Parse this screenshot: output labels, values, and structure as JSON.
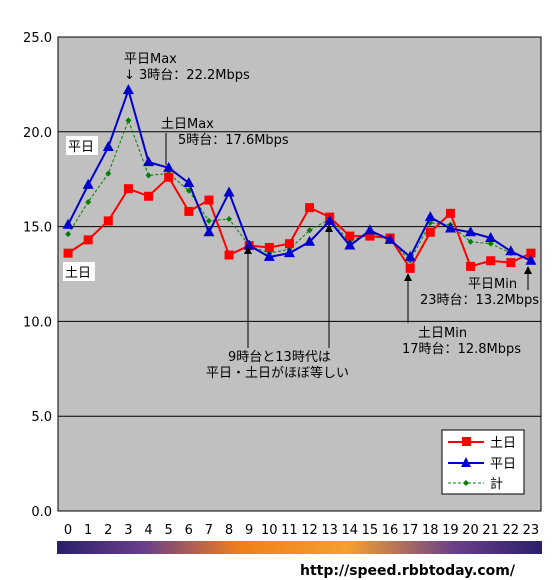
{
  "chart_data": {
    "type": "line",
    "categories": [
      "0",
      "1",
      "2",
      "3",
      "4",
      "5",
      "6",
      "7",
      "8",
      "9",
      "10",
      "11",
      "12",
      "13",
      "14",
      "15",
      "16",
      "17",
      "18",
      "19",
      "20",
      "21",
      "22",
      "23"
    ],
    "x_tick_labels": [
      "0",
      "1",
      "2",
      "3",
      "4",
      "5",
      "6",
      "7",
      "8",
      "9",
      "10",
      "11",
      "12",
      "13",
      "14",
      "15",
      "16",
      "17",
      "18",
      "19",
      "20",
      "21",
      "22",
      "23"
    ],
    "y_tick_labels": [
      "0.0",
      "5.0",
      "10.0",
      "15.0",
      "20.0",
      "25.0"
    ],
    "ylim": [
      0,
      25
    ],
    "grid": "horizontal",
    "legend_position": "bottom-right",
    "series": [
      {
        "name": "土日",
        "color": "#ff0000",
        "marker": "square",
        "values": [
          13.6,
          14.3,
          15.3,
          17.0,
          16.6,
          17.6,
          15.8,
          16.4,
          13.5,
          14.0,
          13.9,
          14.1,
          16.0,
          15.5,
          14.5,
          14.5,
          14.4,
          12.8,
          14.7,
          15.7,
          12.9,
          13.2,
          13.1,
          13.6
        ]
      },
      {
        "name": "平日",
        "color": "#0000cc",
        "marker": "triangle",
        "values": [
          15.1,
          17.2,
          19.2,
          22.2,
          18.4,
          18.1,
          17.3,
          14.7,
          16.8,
          14.0,
          13.4,
          13.6,
          14.2,
          15.3,
          14.0,
          14.8,
          14.3,
          13.4,
          15.5,
          14.9,
          14.7,
          14.4,
          13.7,
          13.2
        ]
      },
      {
        "name": "計",
        "color": "#008000",
        "marker": "diamond",
        "dashed": true,
        "values": [
          14.6,
          16.3,
          17.8,
          20.6,
          17.7,
          17.8,
          16.9,
          15.3,
          15.4,
          14.0,
          13.6,
          13.8,
          14.8,
          15.4,
          14.2,
          14.7,
          14.3,
          13.2,
          15.2,
          15.1,
          14.2,
          14.1,
          13.6,
          13.3
        ]
      }
    ],
    "annotations": {
      "weekday_max_line1": "平日Max",
      "weekday_max_line2": "↓ 3時台：22.2Mbps",
      "weekend_max_line1": "土日Max",
      "weekend_max_line2": "5時台：17.6Mbps",
      "series_label_weekday": "平日",
      "series_label_weekend": "土日",
      "weekday_min_line1": "平日Min",
      "weekday_min_line2": "23時台：13.2Mbps",
      "weekend_min_line1": "土日Min",
      "weekend_min_line2": "17時台：12.8Mbps",
      "note_line1": "9時台と13時代は",
      "note_line2": "平日・土日がほぼ等しい"
    }
  },
  "footer": {
    "url": "http://speed.rbbtoday.com/",
    "gradient_colors": [
      "#2b1f6a",
      "#6a3f8a",
      "#f0801a",
      "#f4a030",
      "#6a3f8a",
      "#2b1f6a"
    ]
  },
  "colors": {
    "plot_bg": "#c0c0c0",
    "grid": "#000000"
  }
}
